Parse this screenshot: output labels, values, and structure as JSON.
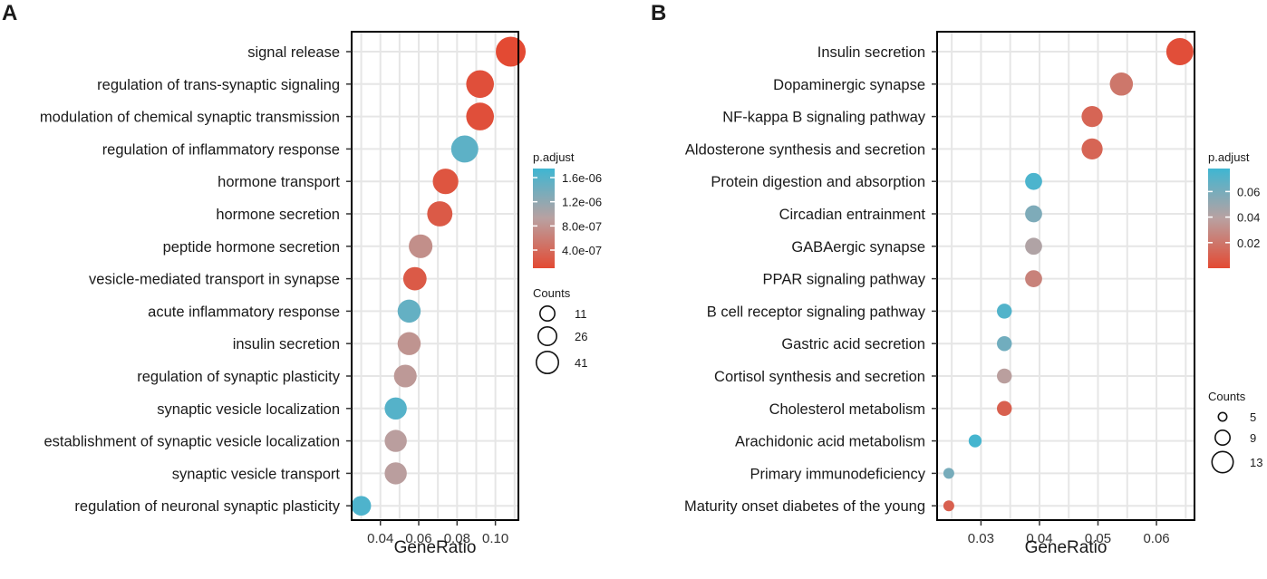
{
  "panels": [
    {
      "letter": "A",
      "chart_data": {
        "type": "scatter",
        "title": "",
        "xlabel": "GeneRatio",
        "ylabel": "",
        "xlim": [
          0.025,
          0.112
        ],
        "xticks": [
          0.04,
          0.06,
          0.08,
          0.1
        ],
        "xtick_labels": [
          "0.04",
          "0.06",
          "0.08",
          "0.10"
        ],
        "grid": true,
        "legend_position": "right",
        "categories": [
          "signal release",
          "regulation of trans-synaptic signaling",
          "modulation of chemical synaptic transmission",
          "regulation of inflammatory response",
          "hormone transport",
          "hormone secretion",
          "peptide hormone secretion",
          "vesicle-mediated transport in synapse",
          "acute inflammatory response",
          "insulin secretion",
          "regulation of synaptic plasticity",
          "synaptic vesicle localization",
          "establishment of synaptic vesicle localization",
          "synaptic vesicle transport",
          "regulation of neuronal synaptic plasticity"
        ],
        "gene_ratio": [
          0.108,
          0.092,
          0.092,
          0.084,
          0.074,
          0.071,
          0.061,
          0.058,
          0.055,
          0.055,
          0.053,
          0.048,
          0.048,
          0.048,
          0.03
        ],
        "count": [
          46,
          39,
          39,
          37,
          32,
          31,
          26,
          25,
          24,
          24,
          23,
          21,
          21,
          21,
          13
        ],
        "p_adjust": [
          1e-07,
          1.5e-07,
          1.5e-07,
          1.55e-06,
          2e-07,
          2.5e-07,
          7.5e-07,
          2.5e-07,
          1.5e-06,
          8e-07,
          8.5e-07,
          1.6e-06,
          9e-07,
          9e-07,
          1.65e-06
        ],
        "color_legend": {
          "title": "p.adjust",
          "range": [
            1e-07,
            1.75e-06
          ],
          "ticks": [
            1.6e-06,
            1.2e-06,
            8e-07,
            4e-07
          ],
          "tick_labels": [
            "1.6e-06",
            "1.2e-06",
            "8.0e-07",
            "4.0e-07"
          ],
          "low_color": "#e34a33",
          "mid_color": "#b9a1a1",
          "high_color": "#3fb6d2"
        },
        "size_legend": {
          "title": "Counts",
          "values": [
            11,
            26,
            41
          ],
          "labels": [
            "11",
            "26",
            "41"
          ],
          "range": [
            11,
            46
          ]
        }
      }
    },
    {
      "letter": "B",
      "chart_data": {
        "type": "scatter",
        "title": "",
        "xlabel": "GeneRatio",
        "ylabel": "",
        "xlim": [
          0.0225,
          0.0665
        ],
        "xticks": [
          0.03,
          0.04,
          0.05,
          0.06
        ],
        "xtick_labels": [
          "0.03",
          "0.04",
          "0.05",
          "0.06"
        ],
        "grid": true,
        "legend_position": "right",
        "categories": [
          "Insulin secretion",
          "Dopaminergic synapse",
          "NF-kappa B signaling pathway",
          "Aldosterone synthesis and secretion",
          "Protein digestion and absorption",
          "Circadian entrainment",
          "GABAergic synapse",
          "PPAR signaling pathway",
          "B cell receptor signaling pathway",
          "Gastric acid secretion",
          "Cortisol synthesis and secretion",
          "Cholesterol metabolism",
          "Arachidonic acid metabolism",
          "Primary immunodeficiency",
          "Maturity onset diabetes of the young"
        ],
        "gene_ratio": [
          0.064,
          0.054,
          0.049,
          0.049,
          0.039,
          0.039,
          0.039,
          0.039,
          0.034,
          0.034,
          0.034,
          0.034,
          0.029,
          0.0245,
          0.0245
        ],
        "count": [
          13,
          11,
          10,
          10,
          8,
          8,
          8,
          8,
          7,
          7,
          7,
          7,
          6,
          5,
          5
        ],
        "p_adjust": [
          0.002,
          0.02,
          0.012,
          0.012,
          0.074,
          0.058,
          0.042,
          0.025,
          0.072,
          0.062,
          0.038,
          0.01,
          0.076,
          0.06,
          0.01
        ],
        "color_legend": {
          "title": "p.adjust",
          "range": [
            0.0,
            0.078
          ],
          "ticks": [
            0.06,
            0.04,
            0.02
          ],
          "tick_labels": [
            "0.06",
            "0.04",
            "0.02"
          ],
          "low_color": "#e34a33",
          "mid_color": "#b9a1a1",
          "high_color": "#3fb6d2"
        },
        "size_legend": {
          "title": "Counts",
          "values": [
            5,
            9,
            13
          ],
          "labels": [
            "5",
            "9",
            "13"
          ],
          "range": [
            5,
            13
          ]
        }
      }
    }
  ]
}
